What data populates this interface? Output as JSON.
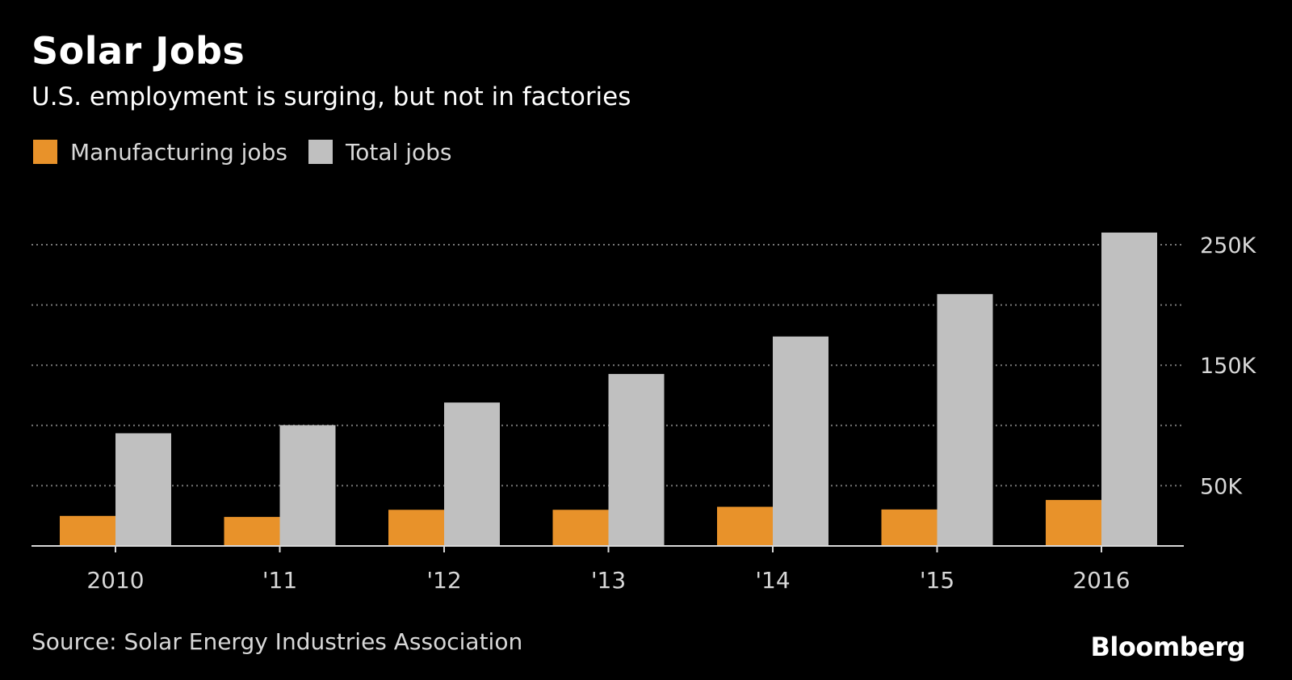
{
  "colors": {
    "background": "#000000",
    "manufacturing": "#E8922A",
    "total": "#C0C0C0",
    "grid": "#777777",
    "axis": "#d8d8d8"
  },
  "chart_data": {
    "type": "bar",
    "title": "Solar Jobs",
    "subtitle": "U.S. employment is surging, but not in factories",
    "categories": [
      "2010",
      "'11",
      "'12",
      "'13",
      "'14",
      "'15",
      "2016"
    ],
    "series": [
      {
        "name": "Manufacturing jobs",
        "color": "#E8922A",
        "values": [
          24916,
          24064,
          30000,
          30000,
          32490,
          30282,
          38121
        ]
      },
      {
        "name": "Total jobs",
        "color": "#C0C0C0",
        "values": [
          93502,
          100237,
          119016,
          142698,
          173807,
          209000,
          260077
        ]
      }
    ],
    "ylim": [
      0,
      260000
    ],
    "yticks": [
      50000,
      100000,
      150000,
      200000,
      250000
    ],
    "ytick_labels": [
      "50K",
      "",
      "150K",
      "",
      "250K"
    ],
    "grid": true,
    "grid_style": "dotted",
    "y_axis_side": "right",
    "legend_position": "top-left",
    "source": "Source: Solar Energy Industries Association",
    "brand": "Bloomberg"
  }
}
